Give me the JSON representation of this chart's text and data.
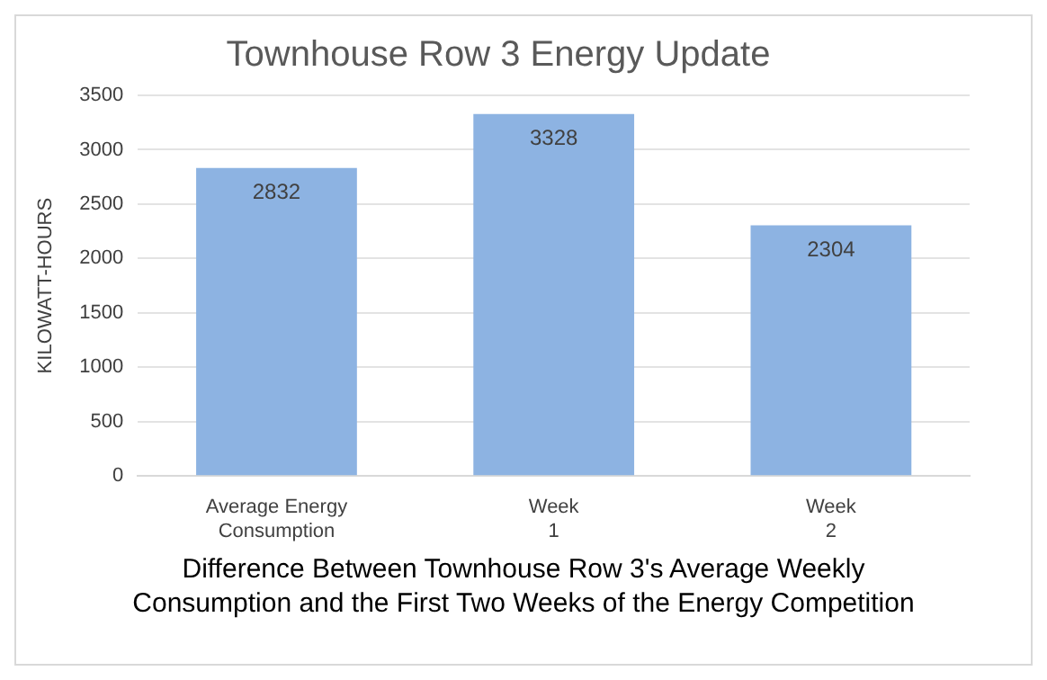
{
  "chart_data": {
    "type": "bar",
    "title": "Townhouse Row 3 Energy Update",
    "xlabel": "Difference Between Townhouse Row 3's Average Weekly Consumption and the First Two Weeks of the Energy Competition",
    "ylabel": "KILOWATT-HOURS",
    "categories": [
      "Average Energy Consumption",
      "Week 1",
      "Week 2"
    ],
    "values": [
      2832,
      3328,
      2304
    ],
    "color": "#8db3e2",
    "ylim": [
      0,
      3500
    ],
    "yticks": [
      0,
      500,
      1000,
      1500,
      2000,
      2500,
      3000,
      3500
    ],
    "grid": "y",
    "data_labels": true
  }
}
